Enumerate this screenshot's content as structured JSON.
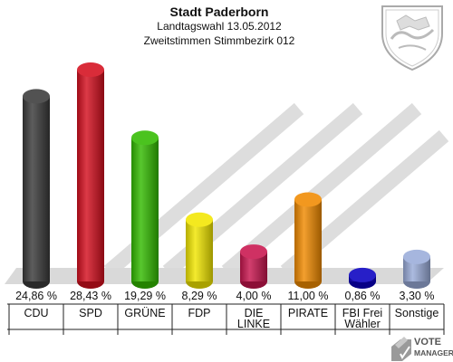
{
  "header": {
    "title": "Stadt Paderborn",
    "subtitle": "Landtagswahl 13.05.2012",
    "subtitle2": "Zweitstimmen Stimmbezirk 012"
  },
  "watermark": {
    "line1": "VOTE",
    "line2": "MANAGER"
  },
  "chart_data": {
    "type": "bar",
    "title": "Stadt Paderborn",
    "subtitle": "Landtagswahl 13.05.2012 / Zweitstimmen Stimmbezirk 012",
    "categories": [
      [
        "CDU"
      ],
      [
        "SPD"
      ],
      [
        "GRÜNE"
      ],
      [
        "FDP"
      ],
      [
        "DIE",
        "LINKE"
      ],
      [
        "PIRATE"
      ],
      [
        "FBI Frei",
        "Wähler"
      ],
      [
        "Sonstige"
      ]
    ],
    "values": [
      24.86,
      28.43,
      19.29,
      8.29,
      4.0,
      11.0,
      0.86,
      3.3
    ],
    "labels": [
      "24,86 %",
      "28,43 %",
      "19,29 %",
      "8,29 %",
      "4,00 %",
      "11,00 %",
      "0,86 %",
      "3,30 %"
    ],
    "colors": [
      "#3a3a3a",
      "#d40f1e",
      "#33bb00",
      "#f2e600",
      "#c8154e",
      "#f08a00",
      "#0a00c0",
      "#9aacd9"
    ],
    "ylim": [
      0,
      28.43
    ],
    "grid": false,
    "legend": "none"
  }
}
